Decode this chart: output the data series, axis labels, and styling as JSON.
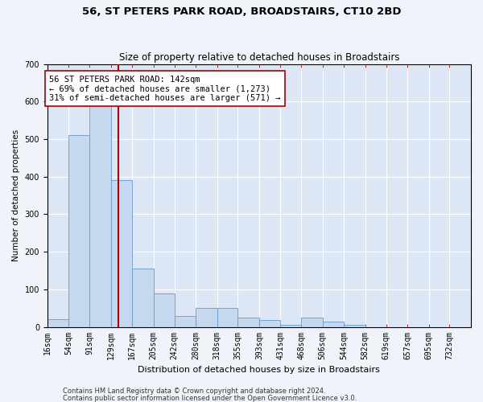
{
  "title": "56, ST PETERS PARK ROAD, BROADSTAIRS, CT10 2BD",
  "subtitle": "Size of property relative to detached houses in Broadstairs",
  "xlabel": "Distribution of detached houses by size in Broadstairs",
  "ylabel": "Number of detached properties",
  "bar_edges": [
    16,
    54,
    91,
    129,
    167,
    205,
    242,
    280,
    318,
    355,
    393,
    431,
    468,
    506,
    544,
    582,
    619,
    657,
    695,
    732,
    770
  ],
  "bar_heights": [
    20,
    510,
    590,
    390,
    155,
    90,
    30,
    50,
    50,
    25,
    18,
    5,
    25,
    15,
    5,
    0,
    0,
    0,
    0,
    0
  ],
  "bar_color": "#c5d8f0",
  "bar_edge_color": "#6699cc",
  "plot_bg_color": "#dce6f5",
  "fig_bg_color": "#f0f4fa",
  "grid_color": "#ffffff",
  "vline_x": 142,
  "vline_color": "#aa0000",
  "annotation_text": "56 ST PETERS PARK ROAD: 142sqm\n← 69% of detached houses are smaller (1,273)\n31% of semi-detached houses are larger (571) →",
  "annotation_box_facecolor": "#ffffff",
  "annotation_box_edgecolor": "#aa0000",
  "ylim": [
    0,
    700
  ],
  "yticks": [
    0,
    100,
    200,
    300,
    400,
    500,
    600,
    700
  ],
  "footnote1": "Contains HM Land Registry data © Crown copyright and database right 2024.",
  "footnote2": "Contains public sector information licensed under the Open Government Licence v3.0.",
  "title_fontsize": 9.5,
  "subtitle_fontsize": 8.5,
  "xlabel_fontsize": 8,
  "ylabel_fontsize": 7.5,
  "tick_fontsize": 7,
  "annotation_fontsize": 7.5,
  "footnote_fontsize": 6
}
